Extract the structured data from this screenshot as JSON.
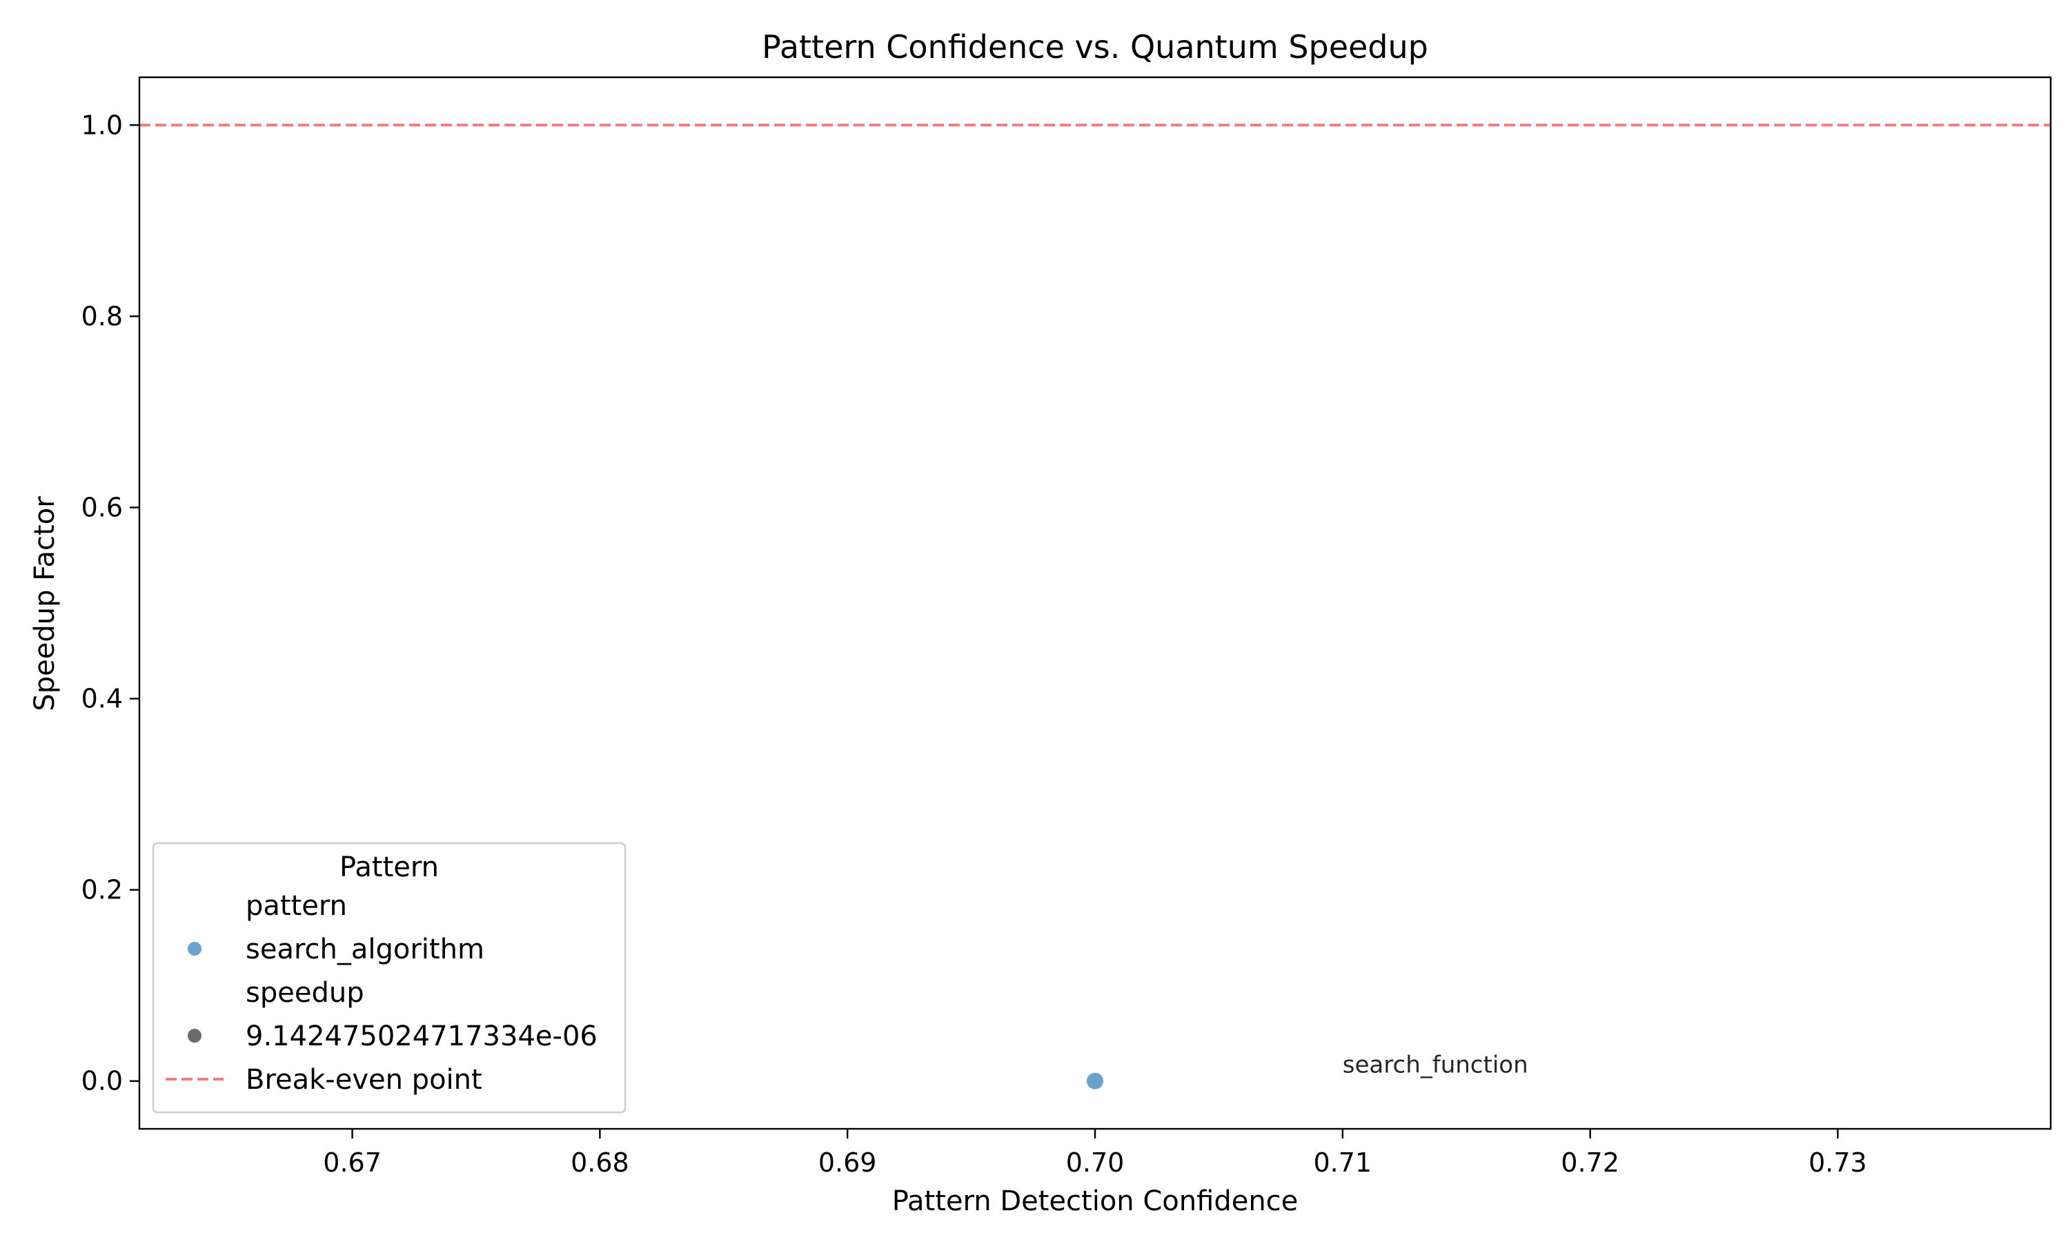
{
  "chart_data": {
    "type": "scatter",
    "title": "Pattern Confidence vs. Quantum Speedup",
    "xlabel": "Pattern Detection Confidence",
    "ylabel": "Speedup Factor",
    "xlim": [
      0.6614,
      0.7386
    ],
    "ylim": [
      -0.05,
      1.05
    ],
    "x_ticks": [
      0.67,
      0.68,
      0.69,
      0.7,
      0.71,
      0.72,
      0.73
    ],
    "x_tick_labels": [
      "0.67",
      "0.68",
      "0.69",
      "0.70",
      "0.71",
      "0.72",
      "0.73"
    ],
    "y_ticks": [
      0.0,
      0.2,
      0.4,
      0.6,
      0.8,
      1.0
    ],
    "y_tick_labels": [
      "0.0",
      "0.2",
      "0.4",
      "0.6",
      "0.8",
      "1.0"
    ],
    "grid": false,
    "series": [
      {
        "name": "search_algorithm",
        "color": "#6aa2cd",
        "points": [
          {
            "x": 0.7,
            "y": 9.142475024717334e-06,
            "label": "search_function"
          }
        ]
      }
    ],
    "annotations": [
      {
        "text": "search_function",
        "x": 0.71,
        "y": 0.009
      }
    ],
    "reference_lines": [
      {
        "type": "horizontal",
        "y": 1.0,
        "color": "#f27b7b",
        "style": "dashed",
        "label": "Break-even point"
      }
    ],
    "legend": {
      "title": "Pattern",
      "placement": "lower-left",
      "entries": [
        {
          "kind": "header",
          "text": "pattern"
        },
        {
          "kind": "marker",
          "text": "search_algorithm",
          "color": "#6aa2cd"
        },
        {
          "kind": "header",
          "text": "speedup"
        },
        {
          "kind": "marker",
          "text": "9.142475024717334e-06",
          "color": "#6b6b6b"
        },
        {
          "kind": "line",
          "text": "Break-even point",
          "color": "#f27b7b"
        }
      ]
    }
  }
}
